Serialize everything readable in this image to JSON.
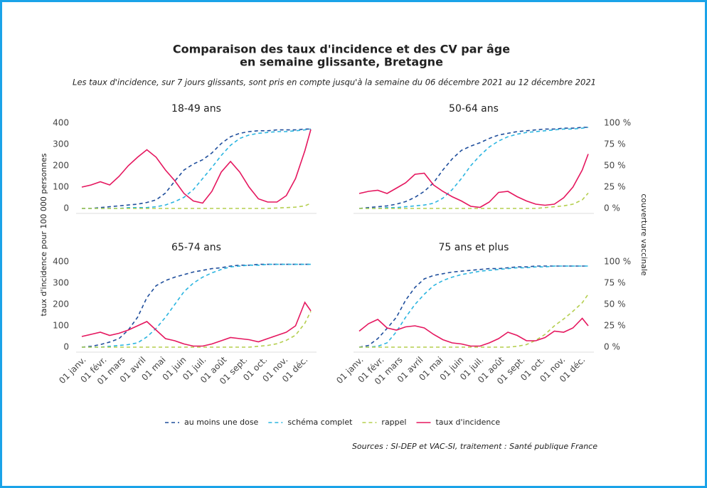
{
  "title": [
    "Comparaison des taux d'incidence et des CV par âge",
    "en semaine glissante, Bretagne"
  ],
  "subtitle": "Les taux d'incidence, sur 7 jours glissants, sont pris en compte jusqu'à la semaine du 06 décembre 2021 au 12 décembre 2021",
  "y_label": "taux d'incidence pour 100 000 personnes",
  "y2_label": "couverture vaccinale",
  "source": "Sources : SI-DEP et VAC-SI, traitement : Santé publique France",
  "chart_data": [
    {
      "type": "line",
      "title": "18-49 ans",
      "x": [
        0,
        14,
        28,
        42,
        56,
        70,
        84,
        98,
        112,
        126,
        140,
        154,
        168,
        182,
        196,
        210,
        224,
        238,
        252,
        266,
        280,
        294,
        308,
        322,
        336,
        345
      ],
      "xlim": [
        0,
        345
      ],
      "ylim": [
        0,
        400
      ],
      "y2lim": [
        0,
        100
      ],
      "yticks": [
        0,
        100,
        200,
        300,
        400
      ],
      "series": [
        {
          "name": "au moins une dose",
          "color": "#1f4e9c",
          "dashed": true,
          "axis": "y2",
          "values": [
            0,
            0,
            1,
            2,
            3,
            4,
            5,
            7,
            10,
            18,
            32,
            45,
            52,
            57,
            65,
            76,
            84,
            88,
            90,
            91,
            91,
            92,
            92,
            92,
            93,
            93
          ]
        },
        {
          "name": "schéma complet",
          "color": "#2bb5e0",
          "dashed": true,
          "axis": "y2",
          "values": [
            0,
            0,
            0,
            0,
            0,
            1,
            1,
            1,
            2,
            4,
            8,
            13,
            22,
            35,
            48,
            62,
            74,
            82,
            86,
            88,
            89,
            90,
            90,
            91,
            92,
            93
          ]
        },
        {
          "name": "rappel",
          "color": "#b5cf4f",
          "dashed": true,
          "axis": "y2",
          "values": [
            0,
            0,
            0,
            0,
            0,
            0,
            0,
            0,
            0,
            0,
            0,
            0,
            0,
            0,
            0,
            0,
            0,
            0,
            0,
            0,
            0,
            0.5,
            1,
            1.5,
            3,
            6
          ]
        },
        {
          "name": "taux d'incidence",
          "color": "#e5175f",
          "values": [
            100,
            110,
            125,
            110,
            150,
            200,
            240,
            275,
            240,
            180,
            130,
            70,
            35,
            25,
            80,
            170,
            220,
            170,
            100,
            45,
            30,
            30,
            60,
            140,
            270,
            370
          ]
        }
      ]
    },
    {
      "type": "line",
      "title": "50-64 ans",
      "x": [
        0,
        14,
        28,
        42,
        56,
        70,
        84,
        98,
        112,
        126,
        140,
        154,
        168,
        182,
        196,
        210,
        224,
        238,
        252,
        266,
        280,
        294,
        308,
        322,
        336,
        345
      ],
      "xlim": [
        0,
        345
      ],
      "ylim": [
        0,
        400
      ],
      "y2lim": [
        0,
        100
      ],
      "y2ticks": [
        {
          "value": 0,
          "label": "0 %"
        },
        {
          "value": 25,
          "label": "25 %"
        },
        {
          "value": 50,
          "label": "50 %"
        },
        {
          "value": 75,
          "label": "75 %"
        },
        {
          "value": 100,
          "label": "100 %"
        }
      ],
      "series": [
        {
          "name": "au moins une dose",
          "color": "#1f4e9c",
          "dashed": true,
          "axis": "y2",
          "values": [
            0,
            1,
            2,
            3,
            5,
            8,
            13,
            20,
            30,
            45,
            58,
            68,
            73,
            77,
            82,
            86,
            88,
            90,
            91,
            92,
            93,
            93,
            94,
            94,
            95,
            95
          ]
        },
        {
          "name": "schéma complet",
          "color": "#2bb5e0",
          "dashed": true,
          "axis": "y2",
          "values": [
            0,
            0,
            0,
            1,
            1,
            2,
            3,
            4,
            6,
            12,
            22,
            35,
            50,
            62,
            72,
            79,
            84,
            87,
            89,
            90,
            91,
            92,
            93,
            93,
            94,
            95
          ]
        },
        {
          "name": "rappel",
          "color": "#b5cf4f",
          "dashed": true,
          "axis": "y2",
          "values": [
            0,
            0,
            0,
            0,
            0,
            0,
            0,
            0,
            0,
            0,
            0,
            0,
            0,
            0,
            0,
            0,
            0,
            0,
            0,
            0,
            1,
            2,
            3,
            5,
            10,
            18
          ]
        },
        {
          "name": "taux d'incidence",
          "color": "#e5175f",
          "values": [
            70,
            80,
            85,
            70,
            95,
            120,
            160,
            165,
            110,
            80,
            55,
            35,
            10,
            5,
            30,
            75,
            80,
            55,
            35,
            20,
            15,
            20,
            50,
            100,
            180,
            255
          ]
        }
      ]
    },
    {
      "type": "line",
      "title": "65-74 ans",
      "x": [
        0,
        14,
        28,
        42,
        56,
        70,
        84,
        98,
        112,
        126,
        140,
        154,
        168,
        182,
        196,
        210,
        224,
        238,
        252,
        266,
        280,
        294,
        308,
        322,
        336,
        345
      ],
      "xlim": [
        0,
        345
      ],
      "ylim": [
        0,
        400
      ],
      "y2lim": [
        0,
        100
      ],
      "yticks": [
        0,
        100,
        200,
        300,
        400
      ],
      "xticks": [
        {
          "value": 0,
          "label": "01 janv."
        },
        {
          "value": 31,
          "label": "01 févr."
        },
        {
          "value": 59,
          "label": "01 mars"
        },
        {
          "value": 90,
          "label": "01 avril"
        },
        {
          "value": 120,
          "label": "01 mai"
        },
        {
          "value": 151,
          "label": "01 juin"
        },
        {
          "value": 181,
          "label": "01 juil."
        },
        {
          "value": 212,
          "label": "01 août"
        },
        {
          "value": 243,
          "label": "01 sept."
        },
        {
          "value": 273,
          "label": "01 oct."
        },
        {
          "value": 304,
          "label": "01 nov."
        },
        {
          "value": 334,
          "label": "01 déc."
        }
      ],
      "series": [
        {
          "name": "au moins une dose",
          "color": "#1f4e9c",
          "dashed": true,
          "axis": "y2",
          "values": [
            0,
            1,
            3,
            6,
            10,
            20,
            35,
            58,
            72,
            78,
            82,
            85,
            88,
            90,
            92,
            93,
            95,
            96,
            96,
            97,
            97,
            97,
            97,
            97,
            97,
            97
          ]
        },
        {
          "name": "schéma complet",
          "color": "#2bb5e0",
          "dashed": true,
          "axis": "y2",
          "values": [
            0,
            0,
            0,
            1,
            2,
            3,
            5,
            12,
            22,
            35,
            50,
            65,
            75,
            82,
            87,
            91,
            94,
            95,
            96,
            96,
            97,
            97,
            97,
            97,
            97,
            97
          ]
        },
        {
          "name": "rappel",
          "color": "#b5cf4f",
          "dashed": true,
          "axis": "y2",
          "values": [
            0,
            0,
            0,
            0,
            0,
            0,
            0,
            0,
            0,
            0,
            0,
            0,
            0,
            0,
            0,
            0,
            0,
            0,
            0,
            1,
            2,
            4,
            8,
            14,
            28,
            42
          ]
        },
        {
          "name": "taux d'incidence",
          "color": "#e5175f",
          "values": [
            50,
            60,
            70,
            55,
            65,
            80,
            100,
            120,
            80,
            40,
            30,
            15,
            5,
            5,
            15,
            30,
            45,
            40,
            35,
            25,
            40,
            55,
            70,
            100,
            210,
            170
          ]
        }
      ]
    },
    {
      "type": "line",
      "title": "75 ans et plus",
      "x": [
        0,
        14,
        28,
        42,
        56,
        70,
        84,
        98,
        112,
        126,
        140,
        154,
        168,
        182,
        196,
        210,
        224,
        238,
        252,
        266,
        280,
        294,
        308,
        322,
        336,
        345
      ],
      "xlim": [
        0,
        345
      ],
      "ylim": [
        0,
        400
      ],
      "y2lim": [
        0,
        100
      ],
      "y2ticks": [
        {
          "value": 0,
          "label": "0 %"
        },
        {
          "value": 25,
          "label": "25 %"
        },
        {
          "value": 50,
          "label": "50 %"
        },
        {
          "value": 75,
          "label": "75 %"
        },
        {
          "value": 100,
          "label": "100 %"
        }
      ],
      "xticks": [
        {
          "value": 0,
          "label": "01 janv."
        },
        {
          "value": 31,
          "label": "01 févr."
        },
        {
          "value": 59,
          "label": "01 mars"
        },
        {
          "value": 90,
          "label": "01 avril"
        },
        {
          "value": 120,
          "label": "01 mai"
        },
        {
          "value": 151,
          "label": "01 juin"
        },
        {
          "value": 181,
          "label": "01 juil."
        },
        {
          "value": 212,
          "label": "01 août"
        },
        {
          "value": 243,
          "label": "01 sept."
        },
        {
          "value": 273,
          "label": "01 oct."
        },
        {
          "value": 304,
          "label": "01 nov."
        },
        {
          "value": 334,
          "label": "01 déc."
        }
      ],
      "series": [
        {
          "name": "au moins une dose",
          "color": "#1f4e9c",
          "dashed": true,
          "axis": "y2",
          "values": [
            0,
            2,
            10,
            22,
            35,
            55,
            70,
            80,
            84,
            86,
            88,
            89,
            90,
            91,
            92,
            92,
            93,
            94,
            94,
            95,
            95,
            95,
            95,
            95,
            95,
            95
          ]
        },
        {
          "name": "schéma complet",
          "color": "#2bb5e0",
          "dashed": true,
          "axis": "y2",
          "values": [
            0,
            0,
            1,
            5,
            18,
            35,
            50,
            62,
            72,
            78,
            82,
            85,
            87,
            89,
            90,
            91,
            92,
            93,
            93,
            94,
            94,
            95,
            95,
            95,
            95,
            95
          ]
        },
        {
          "name": "rappel",
          "color": "#b5cf4f",
          "dashed": true,
          "axis": "y2",
          "values": [
            0,
            0,
            0,
            0,
            0,
            0,
            0,
            0,
            0,
            0,
            0,
            0,
            0,
            0,
            0,
            0,
            0,
            1,
            3,
            8,
            15,
            25,
            33,
            42,
            52,
            62
          ]
        },
        {
          "name": "taux d'incidence",
          "color": "#e5175f",
          "values": [
            75,
            110,
            130,
            90,
            80,
            95,
            100,
            90,
            60,
            35,
            20,
            15,
            5,
            5,
            20,
            40,
            70,
            55,
            30,
            30,
            45,
            75,
            70,
            90,
            135,
            100
          ]
        }
      ]
    }
  ]
}
